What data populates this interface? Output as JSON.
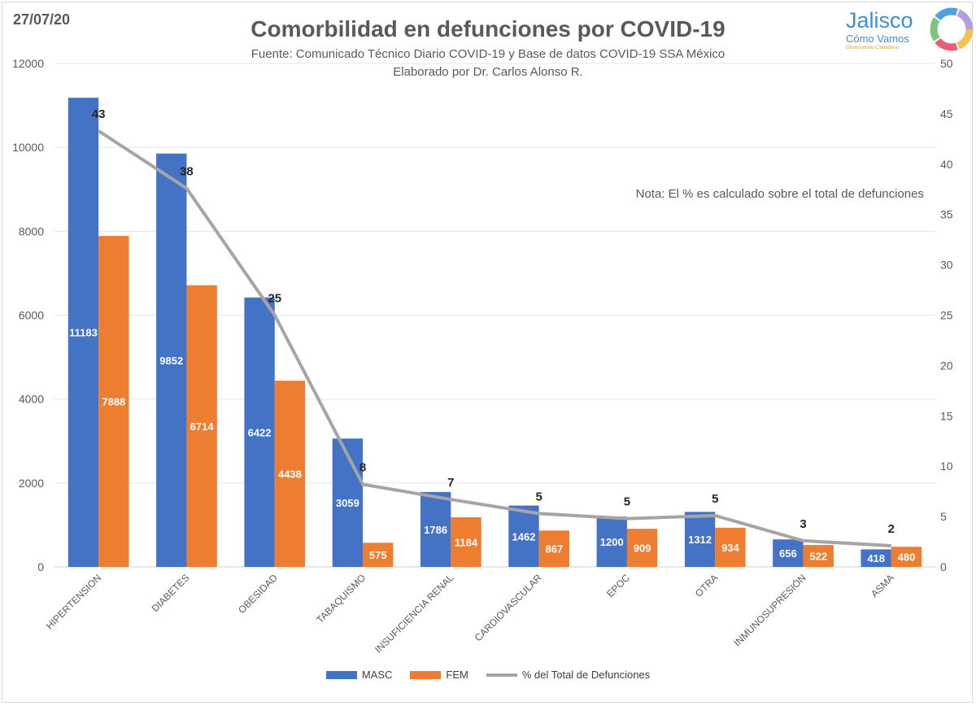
{
  "date": "27/07/20",
  "logo": {
    "name": "Jalisco",
    "tagline": "Cómo Vamos",
    "subline": "Observatorio Ciudadano"
  },
  "colors": {
    "masc": "#4472c4",
    "fem": "#ed7d31",
    "line": "#a5a5a5",
    "text": "#595959"
  },
  "chart_data": {
    "type": "bar",
    "title": "Comorbilidad en defunciones por COVID-19",
    "subtitle": "Fuente: Comunicado Técnico Diario COVID-19 y Base de datos COVID-19 SSA México",
    "author": "Elaborado por Dr. Carlos Alonso R.",
    "note": "Nota: El % es calculado sobre el total de defunciones",
    "categories": [
      "HIPERTENSION",
      "DIABETES",
      "OBESIDAD",
      "TABAQUISMO",
      "INSUFICIENCIA RENAL",
      "CARDIOVASCULAR",
      "EPOC",
      "OTRA",
      "INMUNOSUPRESIÓN",
      "ASMA"
    ],
    "series": [
      {
        "name": "MASC",
        "type": "bar",
        "axis": "left",
        "values": [
          11183,
          9852,
          6422,
          3059,
          1786,
          1462,
          1200,
          1312,
          656,
          418
        ]
      },
      {
        "name": "FEM",
        "type": "bar",
        "axis": "left",
        "values": [
          7888,
          6714,
          4438,
          575,
          1184,
          867,
          909,
          934,
          522,
          480
        ]
      },
      {
        "name": "% del Total de Defunciones",
        "type": "line",
        "axis": "right",
        "values": [
          43.3,
          37.6,
          25,
          8.2,
          6.7,
          5.3,
          4.8,
          5.1,
          2.6,
          2.1
        ],
        "labels": [
          "43",
          "38",
          "25",
          "8",
          "7",
          "5",
          "5",
          "5",
          "3",
          "2"
        ]
      }
    ],
    "y_left": {
      "min": 0,
      "max": 12000,
      "ticks": [
        "0",
        "2000",
        "4000",
        "6000",
        "8000",
        "10000",
        "12000"
      ]
    },
    "y_right": {
      "min": 0,
      "max": 50,
      "ticks": [
        "0",
        "5",
        "10",
        "15",
        "20",
        "25",
        "30",
        "35",
        "40",
        "45",
        "50"
      ]
    },
    "grid": true,
    "legend": "bottom-center"
  }
}
